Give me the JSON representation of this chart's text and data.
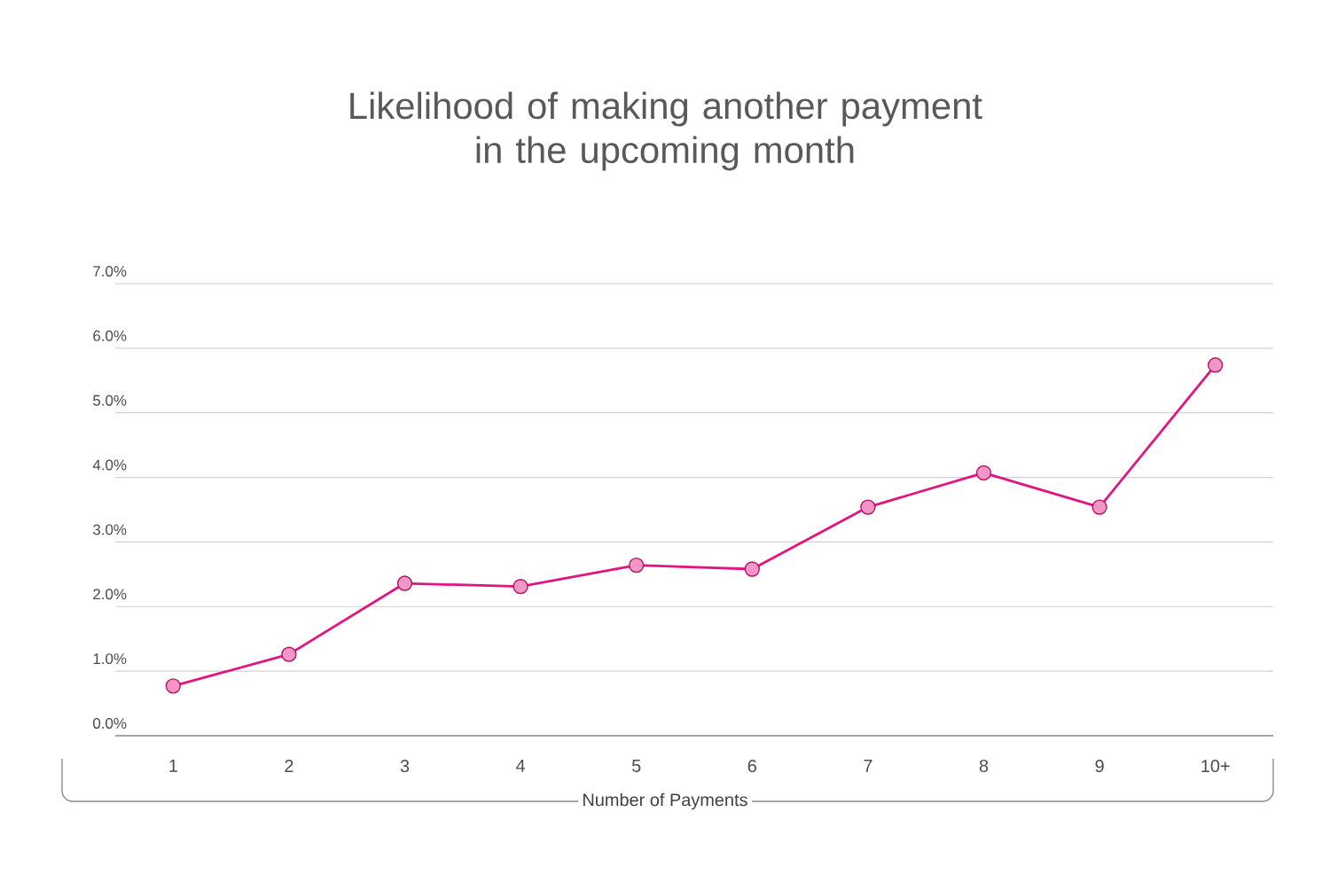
{
  "chart_data": {
    "type": "line",
    "title": "Likelihood of making another payment\nin the upcoming month",
    "xlabel": "Number of Payments",
    "categories": [
      "1",
      "2",
      "3",
      "4",
      "5",
      "6",
      "7",
      "8",
      "9",
      "10+"
    ],
    "series": [
      {
        "color": "#e0157f",
        "values": [
          0.77,
          1.26,
          2.36,
          2.31,
          2.64,
          2.58,
          3.54,
          4.07,
          3.54,
          5.74
        ]
      }
    ],
    "ylim": [
      0,
      7
    ],
    "yticks": [
      {
        "value": 0,
        "label": "0.0%"
      },
      {
        "value": 1,
        "label": "1.0%"
      },
      {
        "value": 2,
        "label": "2.0%"
      },
      {
        "value": 3,
        "label": "3.0%"
      },
      {
        "value": 4,
        "label": "4.0%"
      },
      {
        "value": 5,
        "label": "5.0%"
      },
      {
        "value": 6,
        "label": "6.0%"
      },
      {
        "value": 7,
        "label": "7.0%"
      }
    ],
    "grid": "y",
    "marker": "circle",
    "line_style": "solid"
  }
}
